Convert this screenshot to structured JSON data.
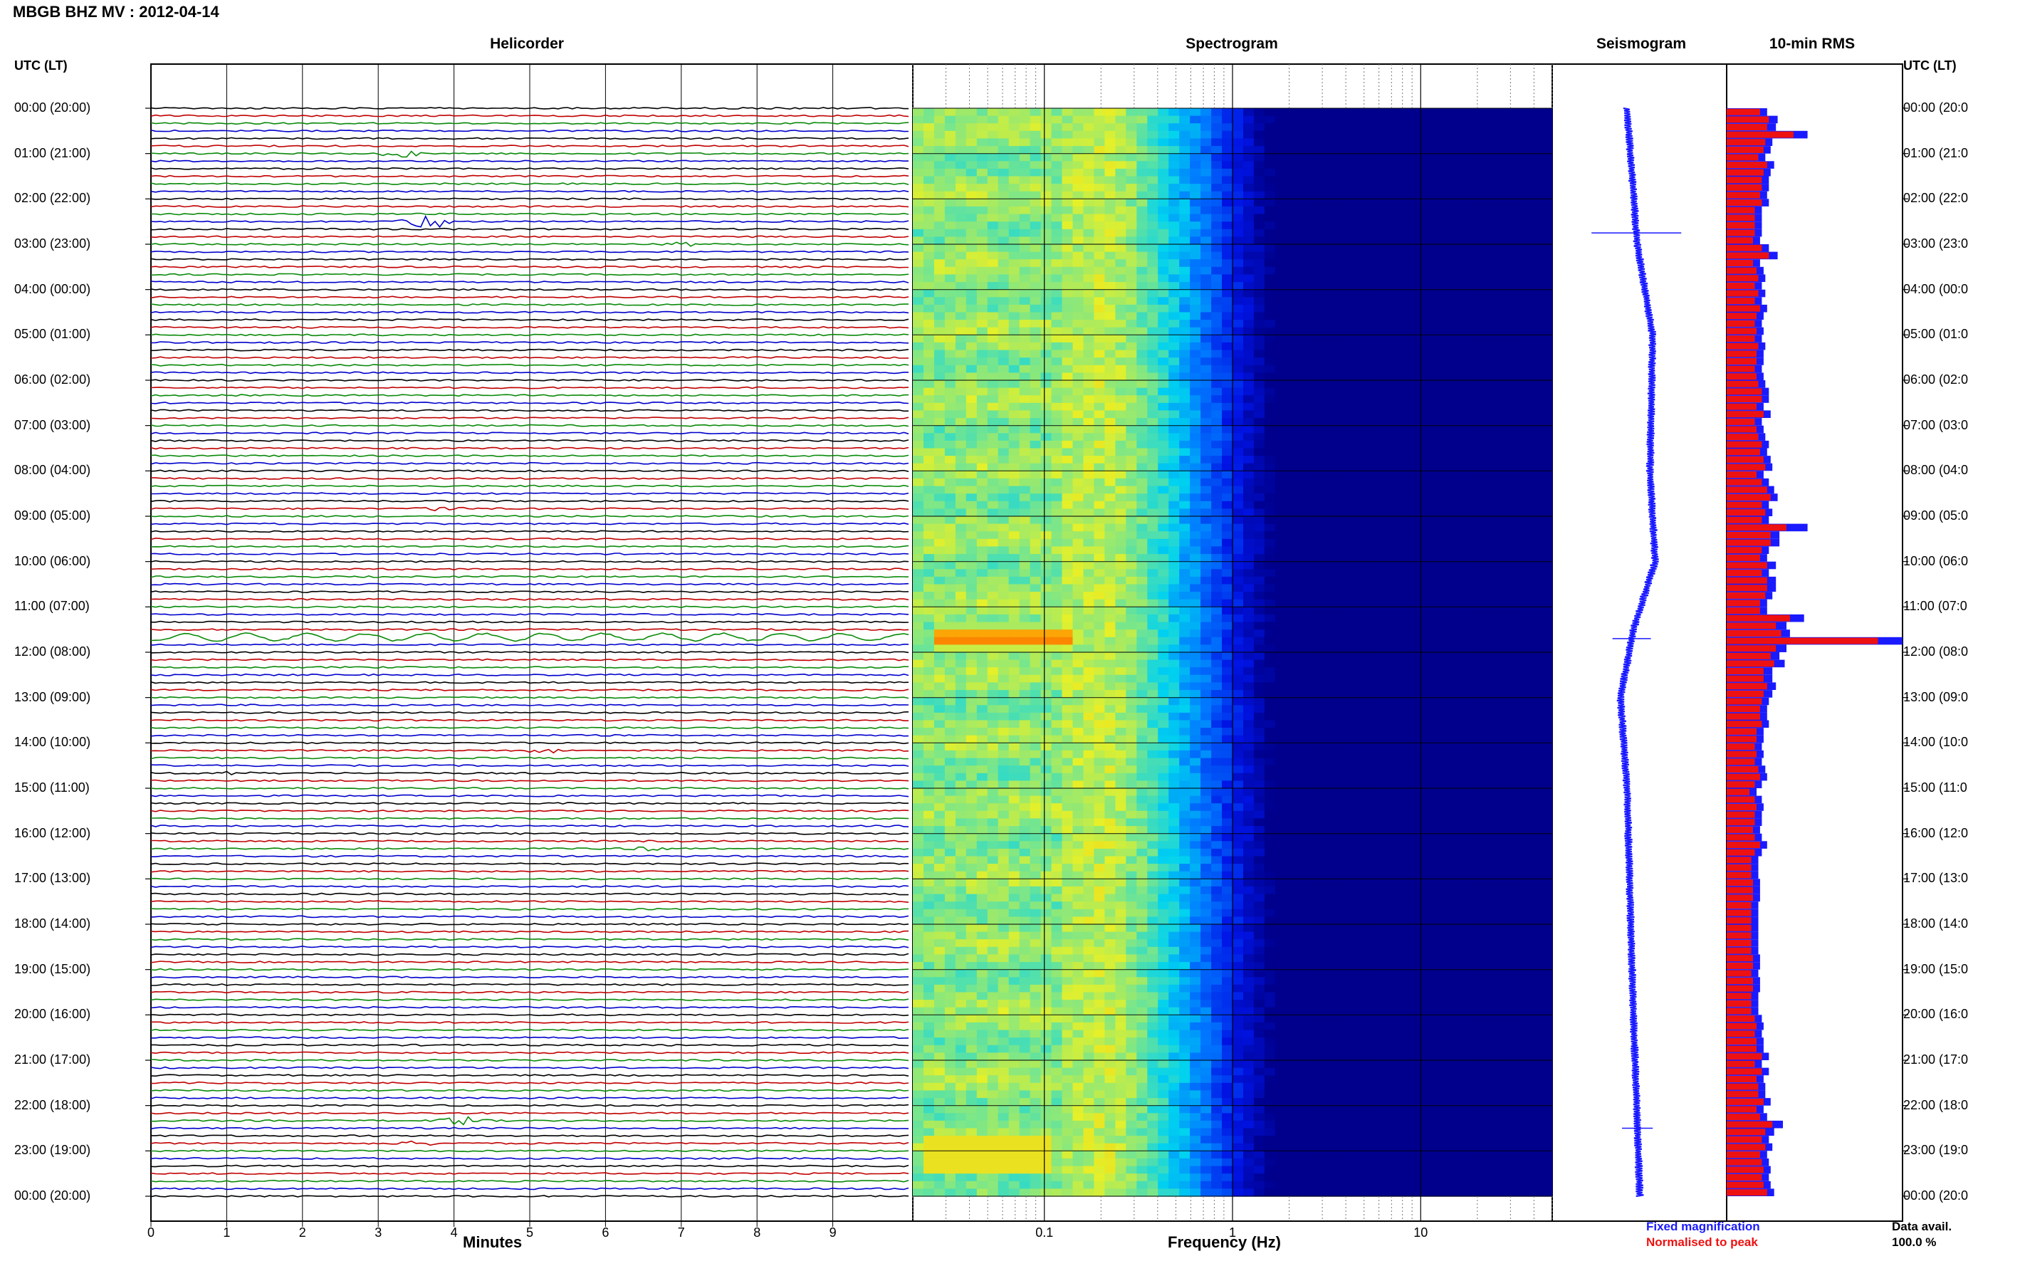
{
  "title": "MBGB BHZ MV : 2012-04-14",
  "panels": {
    "helicorder": "Helicorder",
    "spectrogram": "Spectrogram",
    "seismogram": "Seismogram",
    "rms": "10-min RMS"
  },
  "time_axis_header_left": "UTC (LT)",
  "time_axis_header_right": "UTC (LT)",
  "time_labels": [
    "00:00 (20:00)",
    "01:00 (21:00)",
    "02:00 (22:00)",
    "03:00 (23:00)",
    "04:00 (00:00)",
    "05:00 (01:00)",
    "06:00 (02:00)",
    "07:00 (03:00)",
    "08:00 (04:00)",
    "09:00 (05:00)",
    "10:00 (06:00)",
    "11:00 (07:00)",
    "12:00 (08:00)",
    "13:00 (09:00)",
    "14:00 (10:00)",
    "15:00 (11:00)",
    "16:00 (12:00)",
    "17:00 (13:00)",
    "18:00 (14:00)",
    "19:00 (15:00)",
    "20:00 (16:00)",
    "21:00 (17:00)",
    "22:00 (18:00)",
    "23:00 (19:00)",
    "00:00 (20:00)"
  ],
  "time_labels_right": [
    "00:00 (20:0",
    "01:00 (21:0",
    "02:00 (22:0",
    "03:00 (23:0",
    "04:00 (00:0",
    "05:00 (01:0",
    "06:00 (02:0",
    "07:00 (03:0",
    "08:00 (04:0",
    "09:00 (05:0",
    "10:00 (06:0",
    "11:00 (07:0",
    "12:00 (08:0",
    "13:00 (09:0",
    "14:00 (10:0",
    "15:00 (11:0",
    "16:00 (12:0",
    "17:00 (13:0",
    "18:00 (14:0",
    "19:00 (15:0",
    "20:00 (16:0",
    "21:00 (17:0",
    "22:00 (18:0",
    "23:00 (19:0",
    "00:00 (20:0"
  ],
  "minutes_axis": {
    "label": "Minutes",
    "ticks": [
      "0",
      "1",
      "2",
      "3",
      "4",
      "5",
      "6",
      "7",
      "8",
      "9"
    ]
  },
  "frequency_axis": {
    "label": "Frequency (Hz)",
    "ticks": [
      "0.1",
      "1",
      "10"
    ],
    "scale": "log",
    "range": [
      0.02,
      50
    ]
  },
  "legend": {
    "fixed": "Fixed magnification",
    "normalised": "Normalised to peak"
  },
  "data_avail": {
    "label": "Data avail.",
    "value": "100.0 %"
  },
  "colors": {
    "trace_1": "#000000",
    "trace_2": "#c00000",
    "trace_3": "#0a8a0a",
    "trace_4": "#0000cc",
    "rms_fixed": "#1a1aff",
    "rms_norm": "#ee1111",
    "legend_fixed": "#1a1aff",
    "legend_norm": "#ee1111"
  },
  "chart_data": [
    {
      "type": "line",
      "name": "Helicorder",
      "x_unit": "minutes",
      "xlim": [
        0,
        10
      ],
      "rows_per_hour": 6,
      "rows": 144,
      "trace_colors_cycle": [
        "#000000",
        "#c00000",
        "#0a8a0a",
        "#0000cc"
      ],
      "events": [
        {
          "hour": 1.0,
          "minute": 3.3,
          "amp": 2.5
        },
        {
          "hour": 2.5,
          "minute": 3.6,
          "amp": 6.0
        },
        {
          "hour": 3.0,
          "minute": 7.0,
          "amp": 1.2
        },
        {
          "hour": 8.8,
          "minute": 3.8,
          "amp": 1.4
        },
        {
          "hour": 11.6,
          "minute": 0.0,
          "amp": 4.5,
          "long": true
        },
        {
          "hour": 14.1,
          "minute": 5.2,
          "amp": 1.6
        },
        {
          "hour": 14.6,
          "minute": 1.0,
          "amp": 1.2
        },
        {
          "hour": 16.3,
          "minute": 6.5,
          "amp": 1.2
        },
        {
          "hour": 22.3,
          "minute": 4.1,
          "amp": 2.5
        },
        {
          "hour": 22.9,
          "minute": 3.5,
          "amp": 1.5
        }
      ]
    },
    {
      "type": "heatmap",
      "name": "Spectrogram",
      "x_scale": "log",
      "xlim": [
        0.02,
        50
      ],
      "y_unit": "hours UTC",
      "ylim": [
        0,
        24
      ],
      "energy_peak_hz": 0.22,
      "events": [
        {
          "hour": 11.6,
          "freq_hz": 0.06,
          "level": "high"
        },
        {
          "hour": 23.0,
          "freq_hz": 0.05,
          "level": "medium"
        }
      ]
    },
    {
      "type": "line",
      "name": "Seismogram",
      "y_unit": "hours UTC",
      "ylim": [
        0,
        24
      ],
      "drift_offsets": [
        [
          0,
          0
        ],
        [
          3,
          0.08
        ],
        [
          5,
          0.2
        ],
        [
          8,
          0.18
        ],
        [
          10,
          0.22
        ],
        [
          11.5,
          0.05
        ],
        [
          13,
          -0.05
        ],
        [
          15,
          0
        ],
        [
          20,
          0.05
        ],
        [
          24,
          0.1
        ]
      ],
      "spikes": [
        {
          "hour": 2.75,
          "amp": 0.35
        },
        {
          "hour": 11.7,
          "amp": 0.15
        },
        {
          "hour": 22.5,
          "amp": 0.12
        }
      ]
    },
    {
      "type": "bar",
      "name": "10-min RMS",
      "orientation": "horizontal",
      "bins_per_hour": 6,
      "ylim": [
        0,
        24
      ],
      "fixed_magnification_pct": [
        23,
        29,
        28,
        46,
        26,
        25,
        22,
        27,
        25,
        24,
        24,
        23,
        24,
        20,
        20,
        20,
        20,
        19,
        24,
        29,
        19,
        21,
        22,
        20,
        22,
        20,
        23,
        21,
        20,
        21,
        20,
        22,
        21,
        21,
        20,
        21,
        22,
        24,
        24,
        21,
        25,
        20,
        21,
        22,
        24,
        23,
        25,
        26,
        21,
        24,
        27,
        29,
        24,
        26,
        24,
        46,
        30,
        30,
        24,
        23,
        28,
        24,
        28,
        28,
        26,
        23,
        23,
        44,
        34,
        36,
        100,
        34,
        30,
        33,
        26,
        26,
        28,
        26,
        24,
        23,
        23,
        24,
        21,
        21,
        20,
        21,
        20,
        22,
        23,
        20,
        17,
        20,
        21,
        20,
        20,
        19,
        20,
        23,
        20,
        18,
        18,
        18,
        19,
        19,
        19,
        18,
        18,
        18,
        18,
        18,
        18,
        18,
        19,
        19,
        18,
        19,
        19,
        18,
        18,
        18,
        20,
        21,
        20,
        21,
        21,
        24,
        20,
        24,
        21,
        22,
        22,
        25,
        21,
        23,
        32,
        27,
        24,
        26,
        23,
        24,
        25,
        24,
        25,
        27
      ],
      "normalised_to_peak_pct": [
        19,
        24,
        23,
        38,
        22,
        21,
        18,
        23,
        21,
        20,
        20,
        19,
        20,
        16,
        16,
        16,
        16,
        15,
        20,
        24,
        15,
        17,
        18,
        16,
        18,
        16,
        19,
        17,
        16,
        17,
        16,
        18,
        17,
        17,
        16,
        17,
        18,
        20,
        20,
        17,
        21,
        16,
        17,
        18,
        20,
        19,
        21,
        22,
        17,
        20,
        23,
        25,
        20,
        22,
        20,
        34,
        25,
        25,
        20,
        19,
        23,
        20,
        23,
        23,
        22,
        19,
        19,
        36,
        28,
        31,
        86,
        28,
        25,
        27,
        21,
        21,
        23,
        21,
        20,
        19,
        19,
        20,
        17,
        17,
        16,
        17,
        16,
        18,
        19,
        16,
        13,
        16,
        17,
        16,
        16,
        15,
        16,
        19,
        16,
        14,
        14,
        14,
        15,
        15,
        15,
        14,
        14,
        14,
        14,
        14,
        14,
        14,
        15,
        15,
        14,
        15,
        15,
        14,
        14,
        14,
        16,
        17,
        16,
        17,
        17,
        20,
        16,
        20,
        17,
        18,
        18,
        21,
        17,
        19,
        26,
        22,
        20,
        22,
        19,
        20,
        21,
        20,
        21,
        23
      ]
    }
  ]
}
